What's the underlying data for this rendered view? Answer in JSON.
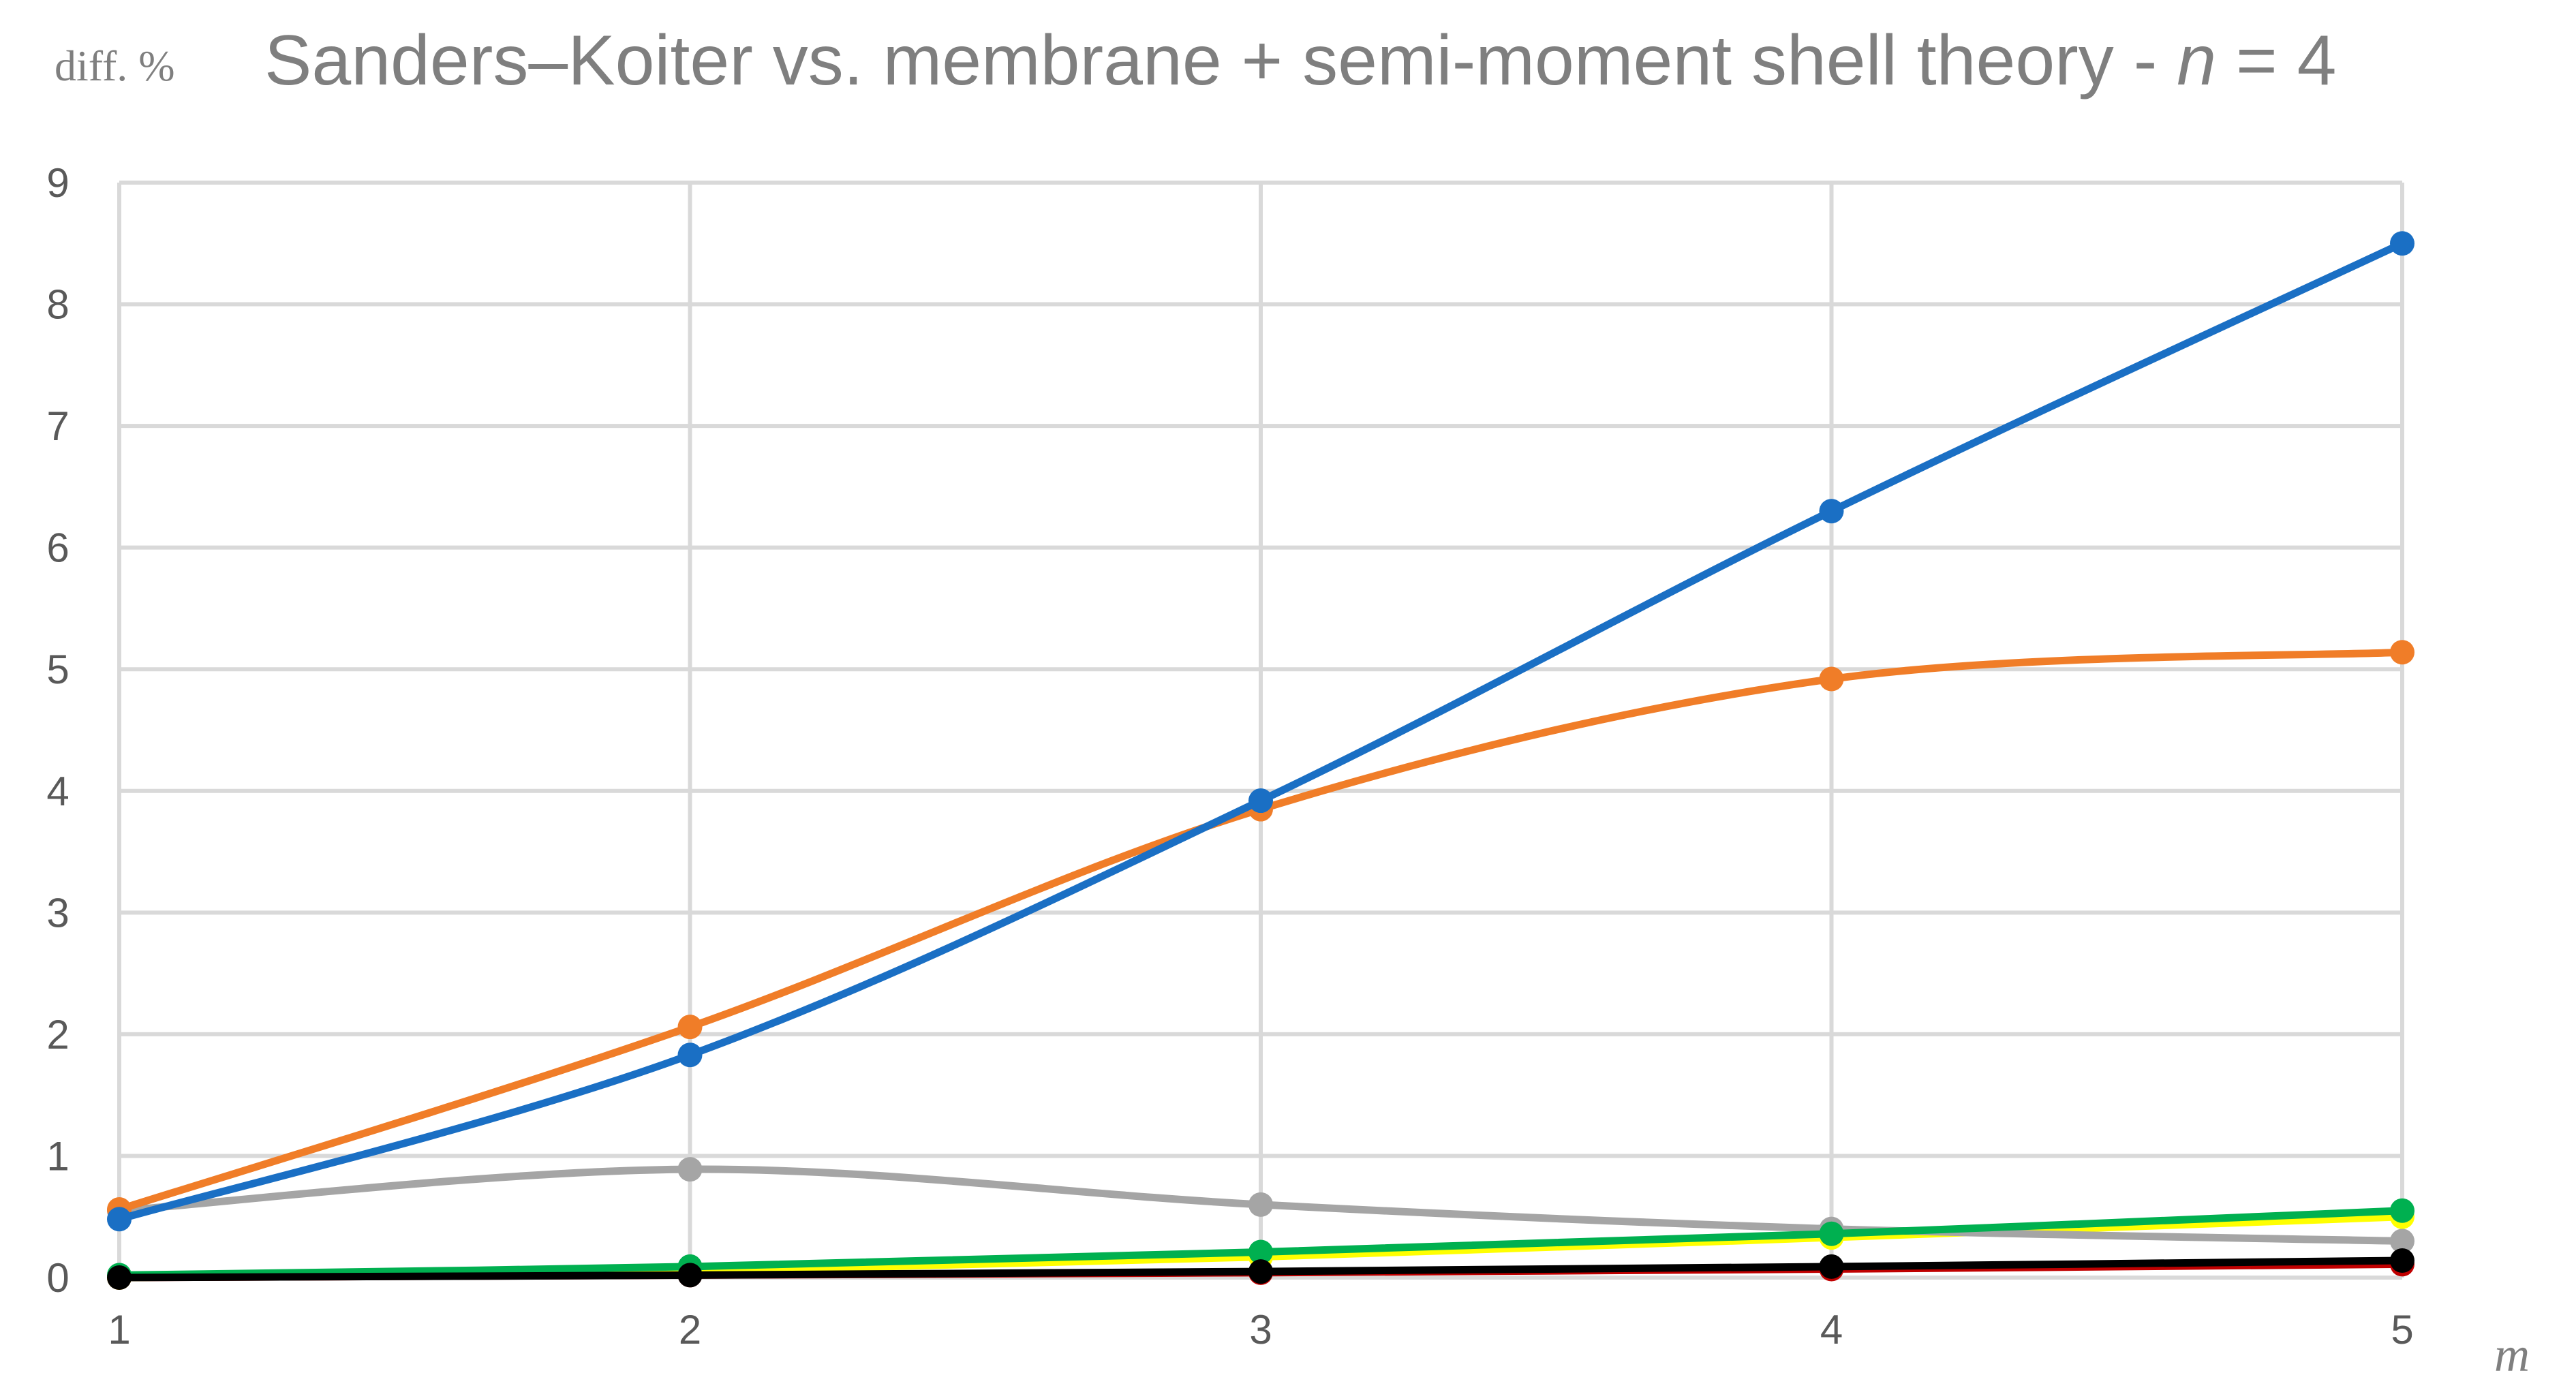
{
  "chart_data": {
    "type": "line",
    "title_main": "Sanders–Koiter vs. membrane + semi-moment shell theory - ",
    "title_n": "n",
    "title_suffix": " = 4",
    "ylabel": "diff. %",
    "xlabel": "m",
    "x": [
      1,
      2,
      3,
      4,
      5
    ],
    "ylim": [
      0,
      9
    ],
    "yticks": [
      0,
      1,
      2,
      3,
      4,
      5,
      6,
      7,
      8,
      9
    ],
    "grid": true,
    "smooth": true,
    "series": [
      {
        "color": "#c00000",
        "values": [
          0.0,
          0.02,
          0.04,
          0.07,
          0.11
        ]
      },
      {
        "color": "#ffff00",
        "values": [
          0.0,
          0.05,
          0.17,
          0.33,
          0.5
        ]
      },
      {
        "color": "#a5a5a5",
        "values": [
          0.55,
          0.89,
          0.6,
          0.4,
          0.3
        ]
      },
      {
        "color": "#00b050",
        "values": [
          0.02,
          0.09,
          0.21,
          0.36,
          0.55
        ]
      },
      {
        "color": "#000000",
        "values": [
          0.0,
          0.02,
          0.05,
          0.09,
          0.14
        ]
      },
      {
        "color": "#f07d28",
        "values": [
          0.56,
          2.06,
          3.85,
          4.92,
          5.14
        ]
      },
      {
        "color": "#1a6fc4",
        "values": [
          0.48,
          1.83,
          3.92,
          6.3,
          8.5
        ]
      }
    ]
  }
}
